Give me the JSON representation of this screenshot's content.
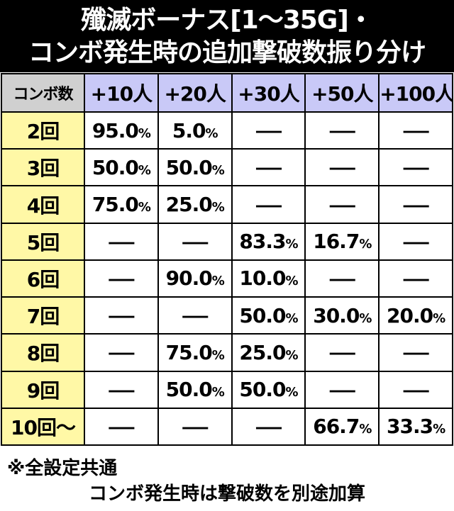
{
  "header": {
    "title_lines": [
      "殲滅ボーナス[1〜35G]・",
      "コンボ発生時の追加撃破数振り分け"
    ]
  },
  "table": {
    "columns": [
      "コンボ数",
      "+10人",
      "+20人",
      "+30人",
      "+50人",
      "+100人"
    ],
    "rows": [
      [
        "2回",
        "95.0%",
        "5.0%",
        "—",
        "—",
        "—"
      ],
      [
        "3回",
        "50.0%",
        "50.0%",
        "—",
        "—",
        "—"
      ],
      [
        "4回",
        "75.0%",
        "25.0%",
        "—",
        "—",
        "—"
      ],
      [
        "5回",
        "—",
        "—",
        "83.3%",
        "16.7%",
        "—"
      ],
      [
        "6回",
        "—",
        "90.0%",
        "10.0%",
        "—",
        "—"
      ],
      [
        "7回",
        "—",
        "—",
        "50.0%",
        "30.0%",
        "20.0%"
      ],
      [
        "8回",
        "—",
        "75.0%",
        "25.0%",
        "—",
        "—"
      ],
      [
        "9回",
        "—",
        "50.0%",
        "50.0%",
        "—",
        "—"
      ],
      [
        "10回〜",
        "—",
        "—",
        "—",
        "66.7%",
        "33.3%"
      ]
    ]
  },
  "notes": [
    "※全設定共通",
    "コンボ発生時は撃破数を別途加算"
  ]
}
